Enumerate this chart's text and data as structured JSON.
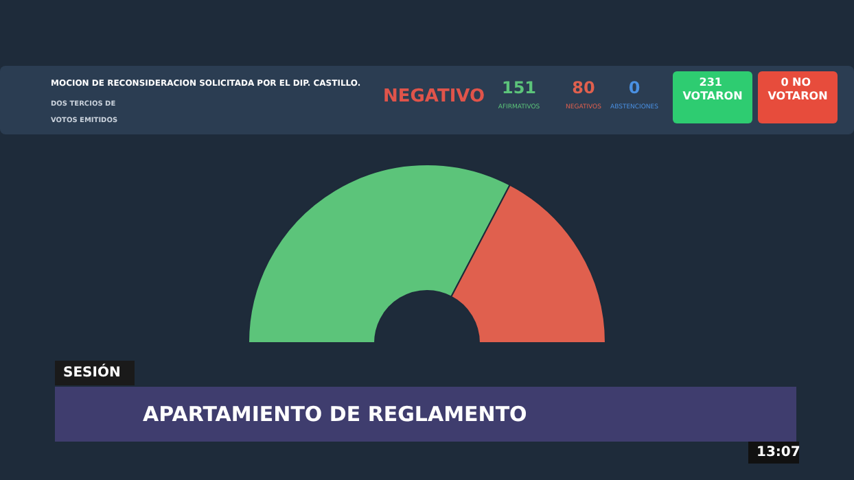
{
  "chart_data": {
    "type": "donut",
    "title": "MOCION DE RECONSIDERACION SOLICITADA POR EL DIP. CASTILLO.",
    "subtitle": "DOS TERCIOS DE VOTOS EMITIDOS",
    "categories": [
      "AFIRMATIVOS",
      "NEGATIVOS",
      "ABSTENCIONES"
    ],
    "values": [
      151,
      80,
      0
    ],
    "colors": [
      "#5cc47a",
      "#e0604e",
      "#4a90e2"
    ],
    "value_labels": [
      "151",
      "80",
      "0"
    ],
    "legend": false,
    "annotations": [
      "NEGATIVO",
      "231 VOTARON",
      "0 NO VOTARON",
      "SESIÓN",
      "APARTAMIENTO DE REGLAMENTO",
      "13:07"
    ]
  }
}
